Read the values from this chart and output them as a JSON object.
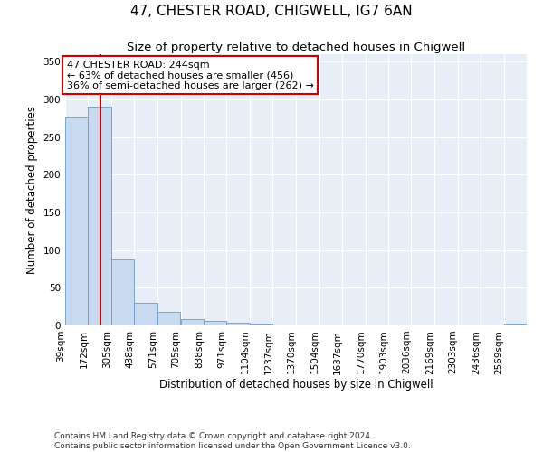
{
  "title": "47, CHESTER ROAD, CHIGWELL, IG7 6AN",
  "subtitle": "Size of property relative to detached houses in Chigwell",
  "xlabel": "Distribution of detached houses by size in Chigwell",
  "ylabel": "Number of detached properties",
  "bin_edges": [
    39,
    172,
    305,
    438,
    571,
    705,
    838,
    971,
    1104,
    1237,
    1370,
    1504,
    1637,
    1770,
    1903,
    2036,
    2169,
    2303,
    2436,
    2569,
    2702
  ],
  "bar_heights": [
    277,
    291,
    88,
    30,
    18,
    8,
    6,
    4,
    3,
    0,
    0,
    0,
    0,
    0,
    0,
    0,
    0,
    0,
    0,
    3
  ],
  "bar_color": "#c8daf0",
  "bar_edge_color": "#6a9dc8",
  "property_size": 244,
  "property_line_color": "#cc0000",
  "annotation_text": "47 CHESTER ROAD: 244sqm\n← 63% of detached houses are smaller (456)\n36% of semi-detached houses are larger (262) →",
  "annotation_box_color": "white",
  "annotation_box_edge_color": "#cc0000",
  "ylim": [
    0,
    360
  ],
  "yticks": [
    0,
    50,
    100,
    150,
    200,
    250,
    300,
    350
  ],
  "background_color": "#e8eef8",
  "grid_color": "white",
  "footer_text": "Contains HM Land Registry data © Crown copyright and database right 2024.\nContains public sector information licensed under the Open Government Licence v3.0.",
  "title_fontsize": 11,
  "subtitle_fontsize": 9.5,
  "axis_label_fontsize": 8.5,
  "tick_fontsize": 7.5,
  "annotation_fontsize": 8,
  "footer_fontsize": 6.5
}
